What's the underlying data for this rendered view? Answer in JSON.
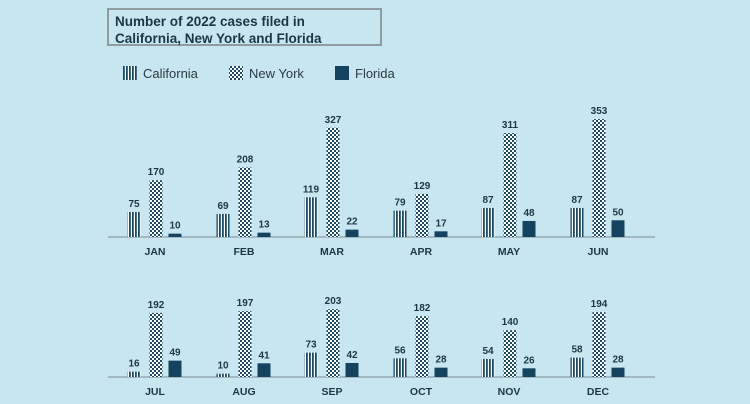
{
  "chart_data": {
    "type": "bar",
    "title": "Number of 2022 cases filed in California, New York and Florida",
    "legend": {
      "placement": "top-left"
    },
    "grid": false,
    "series": [
      {
        "name": "California",
        "pattern": "vertical-stripes",
        "color": "#1a4a66",
        "values": [
          75,
          69,
          119,
          79,
          87,
          87,
          16,
          10,
          73,
          56,
          54,
          58
        ]
      },
      {
        "name": "New York",
        "pattern": "checkerboard",
        "color": "#1a4a66",
        "values": [
          170,
          208,
          327,
          129,
          311,
          353,
          192,
          197,
          203,
          182,
          140,
          194
        ]
      },
      {
        "name": "Florida",
        "pattern": "solid",
        "color": "#14425f",
        "values": [
          10,
          13,
          22,
          17,
          48,
          50,
          49,
          41,
          42,
          28,
          26,
          28
        ]
      }
    ],
    "categories": [
      "JAN",
      "FEB",
      "MAR",
      "APR",
      "MAY",
      "JUN",
      "JUL",
      "AUG",
      "SEP",
      "OCT",
      "NOV",
      "DEC"
    ],
    "panels": [
      {
        "categories": [
          "JAN",
          "FEB",
          "MAR",
          "APR",
          "MAY",
          "JUN"
        ],
        "ylim": [
          0,
          360
        ]
      },
      {
        "categories": [
          "JUL",
          "AUG",
          "SEP",
          "OCT",
          "NOV",
          "DEC"
        ],
        "ylim": [
          0,
          360
        ]
      }
    ]
  }
}
